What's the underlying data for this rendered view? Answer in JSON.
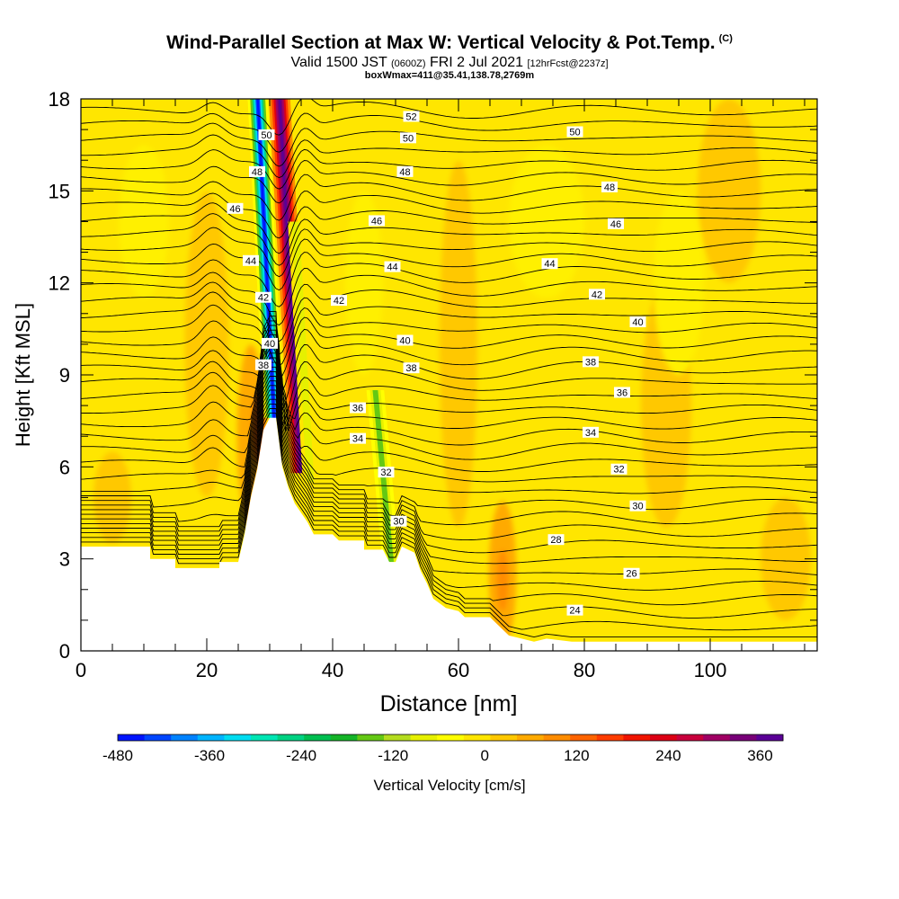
{
  "title": "Wind-Parallel Section at Max W: Vertical Velocity & Pot.Temp.",
  "copyright_mark": "(C)",
  "subtitle": {
    "valid_prefix": "Valid 1500 JST",
    "utc": "(0600Z)",
    "date": "FRI 2 Jul 2021",
    "forecast": "[12hrFcst@2237z]"
  },
  "subtitle2": "boxWmax=411@35.41,138.78,2769m",
  "chart_data": {
    "type": "heatmap",
    "xlabel": "Distance [nm]",
    "ylabel": "Height [Kft MSL]",
    "xlim": [
      0,
      117
    ],
    "ylim": [
      0,
      18
    ],
    "x_ticks": [
      0,
      20,
      40,
      60,
      80,
      100
    ],
    "y_ticks": [
      0,
      3,
      6,
      9,
      12,
      15,
      18
    ],
    "colorbar": {
      "label": "Vertical Velocity [cm/s]",
      "tick_labels": [
        "-480",
        "-360",
        "-240",
        "-120",
        "0",
        "120",
        "240",
        "360"
      ],
      "tick_values": [
        -480,
        -360,
        -240,
        -120,
        0,
        120,
        240,
        360
      ],
      "range": [
        -480,
        390
      ],
      "colors": [
        "#0014ff",
        "#0046ff",
        "#0082ff",
        "#00b4ff",
        "#00dcf0",
        "#00e6b4",
        "#00d282",
        "#00be50",
        "#14b428",
        "#64c814",
        "#b4dc1e",
        "#e6f000",
        "#ffff00",
        "#ffe600",
        "#ffc800",
        "#ffaa00",
        "#ff8c00",
        "#ff6400",
        "#ff3c00",
        "#f01400",
        "#dc0014",
        "#c8003c",
        "#a00064",
        "#780078",
        "#5a0096"
      ]
    },
    "terrain_profile": [
      [
        0,
        3.4
      ],
      [
        11,
        3.4
      ],
      [
        11,
        3.0
      ],
      [
        15,
        3.0
      ],
      [
        15,
        2.7
      ],
      [
        22,
        2.7
      ],
      [
        22,
        2.9
      ],
      [
        25,
        2.9
      ],
      [
        26,
        3.8
      ],
      [
        27,
        5.0
      ],
      [
        28,
        5.9
      ],
      [
        29,
        7.2
      ],
      [
        30,
        7.6
      ],
      [
        31,
        7.6
      ],
      [
        32,
        6.0
      ],
      [
        33,
        5.3
      ],
      [
        34,
        4.8
      ],
      [
        36,
        4.2
      ],
      [
        37,
        3.8
      ],
      [
        40,
        3.8
      ],
      [
        41,
        3.6
      ],
      [
        45,
        3.6
      ],
      [
        45,
        3.3
      ],
      [
        48,
        3.3
      ],
      [
        49,
        2.9
      ],
      [
        50,
        2.9
      ],
      [
        51,
        3.4
      ],
      [
        53,
        3.2
      ],
      [
        54,
        2.6
      ],
      [
        55,
        2.2
      ],
      [
        56,
        1.7
      ],
      [
        58,
        1.4
      ],
      [
        60,
        1.3
      ],
      [
        61,
        1.1
      ],
      [
        65,
        1.1
      ],
      [
        68,
        0.5
      ],
      [
        72,
        0.3
      ],
      [
        74,
        0.4
      ],
      [
        78,
        0.3
      ],
      [
        117,
        0.3
      ]
    ],
    "theta_label_color_note": "contours labeled with potential temperature (degC)",
    "theta_labels": [
      {
        "text": "52",
        "x": 52.5,
        "y": 17.4
      },
      {
        "text": "50",
        "x": 29.5,
        "y": 16.8
      },
      {
        "text": "50",
        "x": 52.0,
        "y": 16.7
      },
      {
        "text": "50",
        "x": 78.5,
        "y": 16.9
      },
      {
        "text": "48",
        "x": 28.0,
        "y": 15.6
      },
      {
        "text": "48",
        "x": 51.5,
        "y": 15.6
      },
      {
        "text": "48",
        "x": 84.0,
        "y": 15.1
      },
      {
        "text": "46",
        "x": 24.5,
        "y": 14.4
      },
      {
        "text": "46",
        "x": 47.0,
        "y": 14.0
      },
      {
        "text": "46",
        "x": 85.0,
        "y": 13.9
      },
      {
        "text": "44",
        "x": 27.0,
        "y": 12.7
      },
      {
        "text": "44",
        "x": 49.5,
        "y": 12.5
      },
      {
        "text": "44",
        "x": 74.5,
        "y": 12.6
      },
      {
        "text": "42",
        "x": 29.0,
        "y": 11.5
      },
      {
        "text": "42",
        "x": 41.0,
        "y": 11.4
      },
      {
        "text": "42",
        "x": 82.0,
        "y": 11.6
      },
      {
        "text": "40",
        "x": 30.0,
        "y": 10.0
      },
      {
        "text": "40",
        "x": 51.5,
        "y": 10.1
      },
      {
        "text": "40",
        "x": 88.5,
        "y": 10.7
      },
      {
        "text": "38",
        "x": 29.0,
        "y": 9.3
      },
      {
        "text": "38",
        "x": 52.5,
        "y": 9.2
      },
      {
        "text": "38",
        "x": 81.0,
        "y": 9.4
      },
      {
        "text": "36",
        "x": 44.0,
        "y": 7.9
      },
      {
        "text": "36",
        "x": 86.0,
        "y": 8.4
      },
      {
        "text": "34",
        "x": 44.0,
        "y": 6.9
      },
      {
        "text": "34",
        "x": 81.0,
        "y": 7.1
      },
      {
        "text": "32",
        "x": 48.5,
        "y": 5.8
      },
      {
        "text": "32",
        "x": 85.5,
        "y": 5.9
      },
      {
        "text": "30",
        "x": 50.5,
        "y": 4.2
      },
      {
        "text": "30",
        "x": 88.5,
        "y": 4.7
      },
      {
        "text": "28",
        "x": 75.5,
        "y": 3.6
      },
      {
        "text": "26",
        "x": 87.5,
        "y": 2.5
      },
      {
        "text": "24",
        "x": 78.5,
        "y": 1.3
      }
    ],
    "w_features": [
      {
        "kind": "downdraft",
        "x": 31.0,
        "y": 10.5,
        "peak": -480
      },
      {
        "kind": "updraft",
        "x": 33.0,
        "y": 10.5,
        "peak": 380
      },
      {
        "kind": "downdraft",
        "x": 49.5,
        "y": 4.5,
        "peak": -140
      },
      {
        "kind": "updraft",
        "x": 28.0,
        "y": 7.0,
        "peak": 200
      },
      {
        "kind": "updraft",
        "x": 67.0,
        "y": 2.2,
        "peak": 220
      }
    ]
  }
}
